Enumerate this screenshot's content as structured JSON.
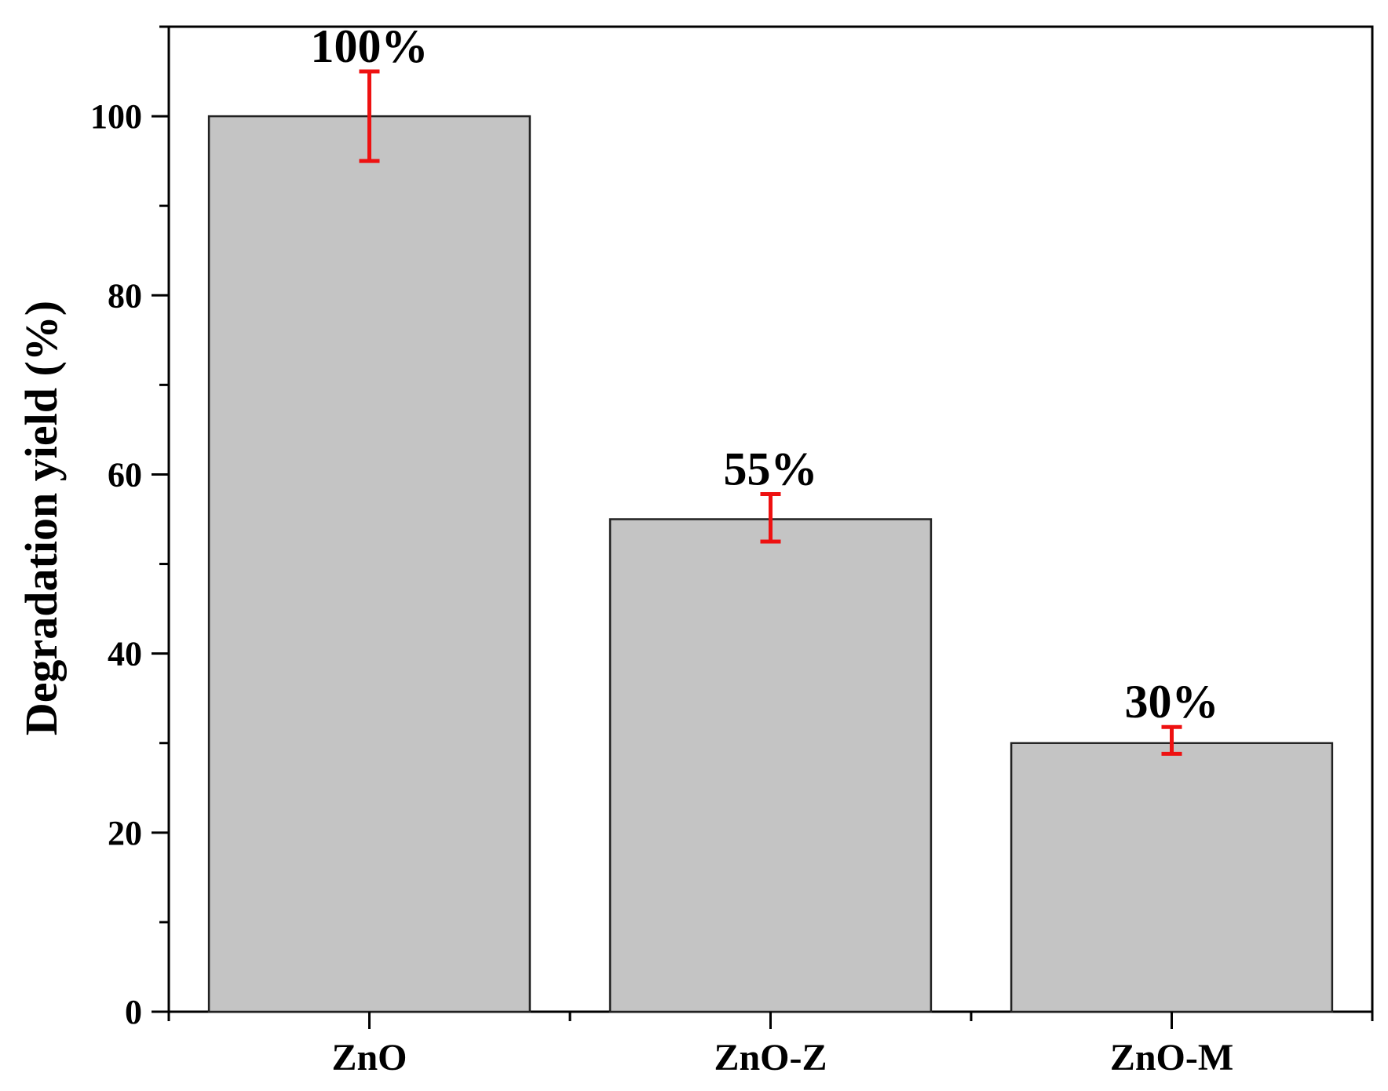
{
  "chart_data": {
    "type": "bar",
    "categories": [
      "ZnO",
      "ZnO-Z",
      "ZnO-M"
    ],
    "values": [
      100,
      55,
      30
    ],
    "errors": [
      {
        "low": 95,
        "high": 105
      },
      {
        "low": 52.5,
        "high": 57.8
      },
      {
        "low": 28.8,
        "high": 31.8
      }
    ],
    "data_labels": [
      "100%",
      "55%",
      "30%"
    ],
    "title": "",
    "xlabel": "",
    "ylabel": "Degradation yield (%)",
    "ylim": [
      0,
      110
    ],
    "yticks": [
      0,
      20,
      40,
      60,
      80,
      100
    ],
    "ytick_labels": [
      "0",
      "20",
      "40",
      "60",
      "80",
      "100"
    ],
    "grid": false,
    "legend": "none",
    "colors": {
      "bar_fill": "#c4c4c4",
      "bar_stroke": "#222222",
      "error_bar": "#ee1111",
      "axis": "#000000"
    }
  }
}
